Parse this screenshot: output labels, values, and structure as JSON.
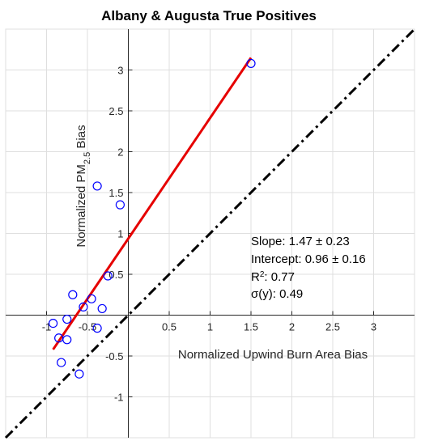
{
  "chart_data": {
    "type": "scatter",
    "title": "Albany & Augusta True Positives",
    "xlabel": "Normalized Upwind Burn Area Bias",
    "ylabel_parts": {
      "base": "Normalized PM",
      "sub": "2.5",
      "tail": " Bias"
    },
    "xlim": [
      -1.5,
      3.5
    ],
    "ylim": [
      -1.5,
      3.5
    ],
    "x_ticks": [
      {
        "value": -1,
        "label": "-1"
      },
      {
        "value": -0.5,
        "label": "-0.5"
      },
      {
        "value": 0.5,
        "label": "0.5"
      },
      {
        "value": 1,
        "label": "1"
      },
      {
        "value": 1.5,
        "label": "1.5"
      },
      {
        "value": 2,
        "label": "2"
      },
      {
        "value": 2.5,
        "label": "2.5"
      },
      {
        "value": 3,
        "label": "3"
      }
    ],
    "y_ticks": [
      {
        "value": -1,
        "label": "-1"
      },
      {
        "value": -0.5,
        "label": "-0.5"
      },
      {
        "value": 0.5,
        "label": "0.5"
      },
      {
        "value": 1,
        "label": "1"
      },
      {
        "value": 1.5,
        "label": "1.5"
      },
      {
        "value": 2,
        "label": "2"
      },
      {
        "value": 2.5,
        "label": "2.5"
      },
      {
        "value": 3,
        "label": "3"
      }
    ],
    "grid": true,
    "points": [
      {
        "x": 1.5,
        "y": 3.08
      },
      {
        "x": -0.38,
        "y": 1.58
      },
      {
        "x": -0.1,
        "y": 1.35
      },
      {
        "x": -0.25,
        "y": 0.48
      },
      {
        "x": -0.68,
        "y": 0.25
      },
      {
        "x": -0.45,
        "y": 0.2
      },
      {
        "x": -0.55,
        "y": 0.1
      },
      {
        "x": -0.32,
        "y": 0.08
      },
      {
        "x": -0.75,
        "y": -0.05
      },
      {
        "x": -0.92,
        "y": -0.1
      },
      {
        "x": -0.38,
        "y": -0.16
      },
      {
        "x": -0.85,
        "y": -0.28
      },
      {
        "x": -0.75,
        "y": -0.3
      },
      {
        "x": -0.82,
        "y": -0.58
      },
      {
        "x": -0.6,
        "y": -0.72
      }
    ],
    "fit_line": {
      "x": [
        -0.92,
        1.5
      ],
      "y": [
        -0.42,
        3.15
      ],
      "color": "#e60000"
    },
    "identity_line": {
      "x": [
        -1.5,
        3.5
      ],
      "y": [
        -1.5,
        3.5
      ],
      "color": "#000000"
    },
    "marker_color": "#0000ff",
    "stats": {
      "slope": "Slope: 1.47 ± 0.23",
      "intercept": "Intercept: 0.96 ± 0.16",
      "r2_base": "R",
      "r2_sup": "2",
      "r2_tail": ": 0.77",
      "sigma": "σ(y): 0.49"
    }
  }
}
